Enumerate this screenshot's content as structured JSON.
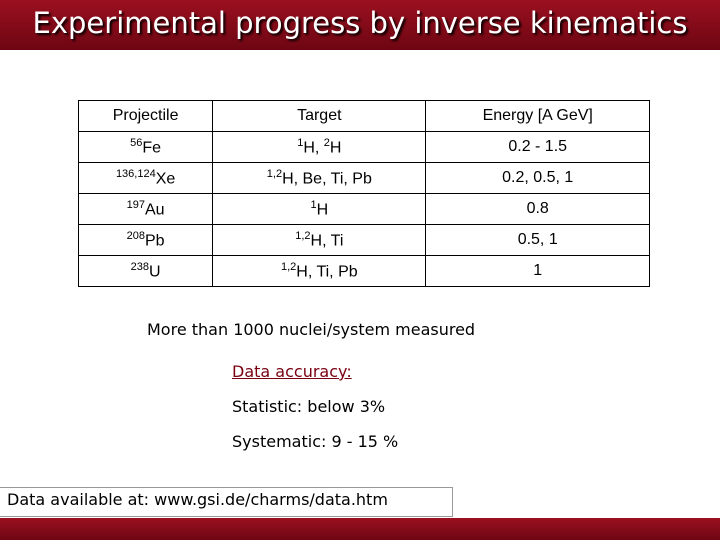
{
  "header": {
    "title": "Experimental progress by inverse kinematics"
  },
  "table": {
    "header": [
      "Projectile",
      "Target",
      "Energy [A GeV]"
    ],
    "rows": [
      [
        [
          {
            "sup": "56"
          },
          {
            "text": "Fe"
          }
        ],
        [
          {
            "sup": "1"
          },
          {
            "text": "H, "
          },
          {
            "sup": "2"
          },
          {
            "text": "H"
          }
        ],
        [
          {
            "text": "0.2 - 1.5"
          }
        ]
      ],
      [
        [
          {
            "sup": "136,124"
          },
          {
            "text": "Xe"
          }
        ],
        [
          {
            "sup": "1,2"
          },
          {
            "text": "H, Be, Ti, Pb"
          }
        ],
        [
          {
            "text": "0.2, 0.5, 1"
          }
        ]
      ],
      [
        [
          {
            "sup": "197"
          },
          {
            "text": "Au"
          }
        ],
        [
          {
            "sup": "1"
          },
          {
            "text": "H"
          }
        ],
        [
          {
            "text": "0.8"
          }
        ]
      ],
      [
        [
          {
            "sup": "208"
          },
          {
            "text": "Pb"
          }
        ],
        [
          {
            "sup": "1,2"
          },
          {
            "text": "H, Ti"
          }
        ],
        [
          {
            "text": "0.5, 1"
          }
        ]
      ],
      [
        [
          {
            "sup": "238"
          },
          {
            "text": "U"
          }
        ],
        [
          {
            "sup": "1,2"
          },
          {
            "text": "H, Ti, Pb"
          }
        ],
        [
          {
            "text": "1"
          }
        ]
      ]
    ]
  },
  "body": {
    "summary": "More than 1000 nuclei/system measured",
    "accuracy_heading": "Data accuracy:",
    "statistic": "Statistic: below 3%",
    "systematic": "Systematic: 9 - 15 %",
    "footer": "Data available at: www.gsi.de/charms/data.htm"
  }
}
